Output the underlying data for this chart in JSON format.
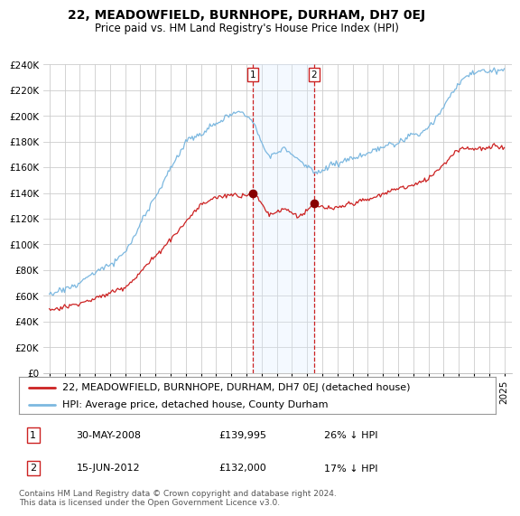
{
  "title": "22, MEADOWFIELD, BURNHOPE, DURHAM, DH7 0EJ",
  "subtitle": "Price paid vs. HM Land Registry's House Price Index (HPI)",
  "ylim": [
    0,
    240000
  ],
  "ytick_values": [
    0,
    20000,
    40000,
    60000,
    80000,
    100000,
    120000,
    140000,
    160000,
    180000,
    200000,
    220000,
    240000
  ],
  "sale1_date": 2008.42,
  "sale1_price": 139995,
  "sale1_info": "30-MAY-2008",
  "sale1_pct": "26% ↓ HPI",
  "sale2_date": 2012.46,
  "sale2_price": 132000,
  "sale2_info": "15-JUN-2012",
  "sale2_pct": "17% ↓ HPI",
  "legend_line1": "22, MEADOWFIELD, BURNHOPE, DURHAM, DH7 0EJ (detached house)",
  "legend_line2": "HPI: Average price, detached house, County Durham",
  "footnote": "Contains HM Land Registry data © Crown copyright and database right 2024.\nThis data is licensed under the Open Government Licence v3.0.",
  "hpi_color": "#7cb8e0",
  "price_color": "#cc2222",
  "sale_marker_color": "#880000",
  "background_color": "#ffffff",
  "plot_bg_color": "#ffffff",
  "grid_color": "#cccccc",
  "shade_color": "#ddeeff",
  "vline_color": "#cc2222",
  "box_edge_color": "#cc2222",
  "title_fontsize": 10,
  "subtitle_fontsize": 8.5,
  "tick_fontsize": 7.5,
  "legend_fontsize": 8,
  "footnote_fontsize": 6.5,
  "xlim_left": 1994.6,
  "xlim_right": 2025.5
}
